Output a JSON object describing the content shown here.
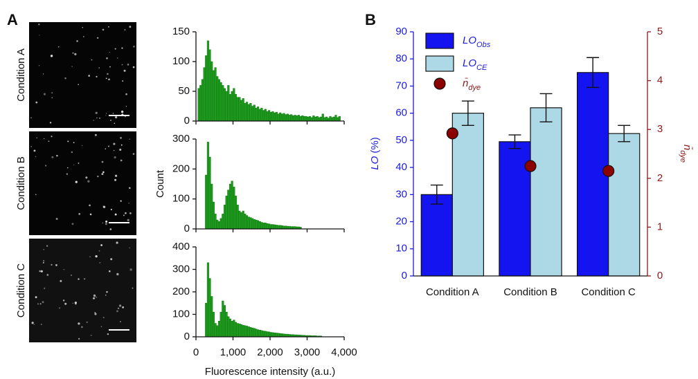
{
  "panels": [
    "A",
    "B"
  ],
  "images": {
    "labels": [
      "Condition A",
      "Condition B",
      "Condition C"
    ]
  },
  "chart_data": [
    {
      "type": "histogram",
      "color": "#1e9a1e",
      "xlim": [
        0,
        4000
      ],
      "ylim": [
        0,
        150
      ],
      "yticks": [
        0,
        50,
        100,
        150
      ],
      "bins": [
        0,
        50,
        100,
        150,
        200,
        250,
        300,
        350,
        400,
        450,
        500,
        550,
        600,
        650,
        700,
        750,
        800,
        850,
        900,
        950,
        1000,
        1050,
        1100,
        1150,
        1200,
        1250,
        1300,
        1350,
        1400,
        1450,
        1500,
        1550,
        1600,
        1650,
        1700,
        1750,
        1800,
        1850,
        1900,
        1950,
        2000,
        2050,
        2100,
        2150,
        2200,
        2250,
        2300,
        2350,
        2400,
        2450,
        2500,
        2550,
        2600,
        2650,
        2700,
        2750,
        2800,
        2850,
        2900,
        2950,
        3000,
        3050,
        3100,
        3150,
        3200,
        3250,
        3300,
        3350,
        3400,
        3450,
        3500,
        3550,
        3600,
        3650,
        3700,
        3750,
        3800,
        3850,
        3900,
        3950,
        4000
      ],
      "counts": [
        0,
        55,
        60,
        70,
        90,
        110,
        135,
        120,
        100,
        85,
        90,
        75,
        70,
        65,
        60,
        55,
        50,
        60,
        45,
        50,
        55,
        45,
        40,
        40,
        35,
        38,
        30,
        32,
        28,
        30,
        25,
        27,
        22,
        24,
        20,
        22,
        18,
        20,
        16,
        18,
        15,
        16,
        14,
        15,
        12,
        14,
        12,
        13,
        11,
        12,
        10,
        11,
        9,
        10,
        9,
        10,
        8,
        9,
        8,
        8,
        7,
        8,
        6,
        9,
        7,
        8,
        6,
        7,
        12,
        6,
        7,
        5,
        8,
        6,
        7,
        10,
        6,
        8,
        0,
        0
      ]
    },
    {
      "type": "histogram",
      "color": "#1e9a1e",
      "xlim": [
        0,
        4000
      ],
      "ylim": [
        0,
        300
      ],
      "yticks": [
        0,
        100,
        200,
        300
      ],
      "y_label": "Count",
      "bins": [
        0,
        50,
        100,
        150,
        200,
        250,
        300,
        350,
        400,
        450,
        500,
        550,
        600,
        650,
        700,
        750,
        800,
        850,
        900,
        950,
        1000,
        1050,
        1100,
        1150,
        1200,
        1250,
        1300,
        1350,
        1400,
        1450,
        1500,
        1550,
        1600,
        1650,
        1700,
        1750,
        1800,
        1850,
        1900,
        1950,
        2000,
        2050,
        2100,
        2150,
        2200,
        2250,
        2300,
        2350,
        2400,
        2450,
        2500,
        2550,
        2600,
        2650,
        2700,
        2750,
        2800,
        2850,
        2900,
        2950,
        3000,
        3050,
        3100,
        3150,
        3200,
        3250,
        3300,
        3350,
        3400,
        3450,
        3500,
        3550,
        3600,
        3650,
        3700,
        3750,
        3800,
        3850,
        3900,
        3950,
        4000
      ],
      "counts": [
        0,
        0,
        0,
        0,
        0,
        180,
        290,
        240,
        150,
        90,
        50,
        30,
        25,
        35,
        50,
        80,
        110,
        130,
        150,
        160,
        140,
        110,
        80,
        60,
        55,
        60,
        50,
        45,
        40,
        38,
        35,
        32,
        30,
        28,
        25,
        22,
        20,
        20,
        18,
        17,
        15,
        15,
        14,
        13,
        12,
        12,
        11,
        10,
        10,
        9,
        9,
        8,
        8,
        8,
        7,
        7,
        6,
        0,
        0,
        0,
        0,
        0,
        0,
        0,
        0,
        0,
        0,
        0,
        0,
        0,
        0,
        0,
        0,
        0,
        0,
        0,
        0,
        0,
        0,
        0
      ]
    },
    {
      "type": "histogram",
      "color": "#1e9a1e",
      "xlim": [
        0,
        4000
      ],
      "ylim": [
        0,
        400
      ],
      "yticks": [
        0,
        100,
        200,
        300,
        400
      ],
      "xticks": [
        0,
        {
          "value": 1000,
          "label": "1,000"
        },
        {
          "value": 2000,
          "label": "2,000"
        },
        {
          "value": 3000,
          "label": "3,000"
        },
        {
          "value": 4000,
          "label": "4,000"
        }
      ],
      "x_label": "Fluorescence intensity (a.u.)",
      "bins": [
        0,
        50,
        100,
        150,
        200,
        250,
        300,
        350,
        400,
        450,
        500,
        550,
        600,
        650,
        700,
        750,
        800,
        850,
        900,
        950,
        1000,
        1050,
        1100,
        1150,
        1200,
        1250,
        1300,
        1350,
        1400,
        1450,
        1500,
        1550,
        1600,
        1650,
        1700,
        1750,
        1800,
        1850,
        1900,
        1950,
        2000,
        2050,
        2100,
        2150,
        2200,
        2250,
        2300,
        2350,
        2400,
        2450,
        2500,
        2550,
        2600,
        2650,
        2700,
        2750,
        2800,
        2850,
        2900,
        2950,
        3000,
        3050,
        3100,
        3150,
        3200,
        3250,
        3300,
        3350,
        3400,
        3450,
        3500,
        3550,
        3600,
        3650,
        3700,
        3750,
        3800,
        3850,
        3900,
        3950,
        4000
      ],
      "counts": [
        0,
        0,
        0,
        0,
        0,
        150,
        330,
        260,
        180,
        110,
        60,
        50,
        70,
        110,
        160,
        140,
        110,
        90,
        80,
        70,
        75,
        65,
        60,
        58,
        55,
        52,
        50,
        48,
        45,
        42,
        40,
        38,
        35,
        32,
        30,
        28,
        26,
        25,
        23,
        22,
        20,
        19,
        18,
        17,
        16,
        15,
        14,
        13,
        12,
        12,
        11,
        10,
        10,
        9,
        9,
        8,
        8,
        7,
        7,
        6,
        6,
        6,
        5,
        5,
        5,
        4,
        4,
        4,
        0,
        0,
        0,
        0,
        0,
        0,
        0,
        0,
        0,
        0,
        0,
        0
      ]
    },
    {
      "type": "bar",
      "categories": [
        "Condition A",
        "Condition B",
        "Condition C"
      ],
      "ylim": [
        0,
        90
      ],
      "yticks": [
        0,
        10,
        20,
        30,
        40,
        50,
        60,
        70,
        80,
        90
      ],
      "y_label": [
        "LO",
        "(%)"
      ],
      "y_color": "#1a1ae0",
      "y2lim": [
        0,
        5
      ],
      "y2ticks": [
        0,
        1,
        2,
        3,
        4,
        5
      ],
      "y2_label": [
        "n̄",
        "dye"
      ],
      "y2_color": "#8b1a1a",
      "series": [
        {
          "name": "LO",
          "name_sub": "Obs",
          "color": "#1414f0",
          "values": [
            30,
            49.5,
            75
          ],
          "errors": [
            3.5,
            2.5,
            5.5
          ]
        },
        {
          "name": "LO",
          "name_sub": "CE",
          "color": "#add8e6",
          "values": [
            60,
            62,
            52.5
          ],
          "errors": [
            4.5,
            5.2,
            3
          ]
        },
        {
          "name": "n̄",
          "name_sub": "dye",
          "color": "#8b0000",
          "values": [
            2.92,
            2.25,
            2.15
          ],
          "axis": "y2",
          "marker": "circle"
        }
      ]
    }
  ]
}
